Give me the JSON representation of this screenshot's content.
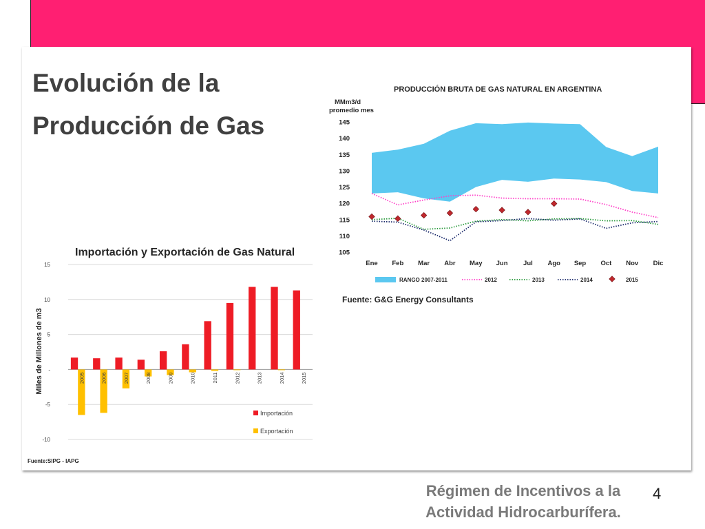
{
  "slide": {
    "title_line1": "Evolución de la",
    "title_line2": "Producción de Gas",
    "footer_line1": "Régimen de Incentivos a la",
    "footer_line2": "Actividad Hidrocarburífera.",
    "page_number": "4",
    "colors": {
      "band": "#ff1f72",
      "title": "#404040",
      "footer": "#7a7a7a"
    }
  },
  "chart_data": [
    {
      "type": "bar",
      "title": "Importación y Exportación de Gas Natural",
      "ylabel": "Miles de Millones de m3",
      "xlabel": "",
      "ylim": [
        -10,
        15
      ],
      "yticks": [
        "15",
        "10",
        "5",
        "-",
        "-5",
        "-10"
      ],
      "categories": [
        "2005",
        "2006",
        "2007",
        "2008",
        "2009",
        "2010",
        "2011",
        "2012",
        "2013",
        "2014",
        "2015"
      ],
      "series": [
        {
          "name": "Importación",
          "color": "#ee1c25",
          "values": [
            1.7,
            1.6,
            1.7,
            1.4,
            2.6,
            3.6,
            6.9,
            9.5,
            11.8,
            11.8,
            11.3
          ]
        },
        {
          "name": "Exportación",
          "color": "#ffc000",
          "values": [
            -6.5,
            -6.2,
            -2.7,
            -1.0,
            -0.8,
            -0.4,
            -0.2,
            -0.1,
            0,
            -0.1,
            0
          ]
        }
      ],
      "source": "Fuente:SIPG - IAPG",
      "grid": true,
      "legend": "bottom-right"
    },
    {
      "type": "line",
      "title": "PRODUCCIÓN BRUTA DE GAS NATURAL EN ARGENTINA",
      "ylabel_line1": "MMm3/d",
      "ylabel_line2": "promedio mes",
      "ylim": [
        105,
        145
      ],
      "yticks": [
        145,
        140,
        135,
        130,
        125,
        120,
        115,
        110,
        105
      ],
      "categories": [
        "Ene",
        "Feb",
        "Mar",
        "Abr",
        "May",
        "Jun",
        "Jul",
        "Ago",
        "Sep",
        "Oct",
        "Nov",
        "Dic"
      ],
      "range": {
        "name": "RANGO 2007-2011",
        "color": "#5bc8f0",
        "upper": [
          135.5,
          136.5,
          138.3,
          142.3,
          144.6,
          144.3,
          144.8,
          144.5,
          144.3,
          137.3,
          134.5,
          137.4
        ],
        "lower": [
          123.0,
          123.4,
          121.5,
          120.5,
          125.0,
          127.2,
          126.6,
          127.6,
          127.3,
          126.5,
          123.8,
          123.0
        ]
      },
      "series": [
        {
          "name": "2012",
          "color": "#ff3fc8",
          "style": "dotted",
          "values": [
            123.0,
            119.5,
            121.0,
            122.3,
            122.5,
            121.6,
            121.4,
            121.4,
            121.3,
            119.6,
            117.3,
            115.6
          ]
        },
        {
          "name": "2013",
          "color": "#2a9a3c",
          "style": "dotted",
          "values": [
            115.0,
            115.4,
            112.0,
            112.4,
            114.5,
            115.0,
            114.6,
            115.2,
            115.3,
            114.6,
            114.7,
            113.5
          ]
        },
        {
          "name": "2014",
          "color": "#1b2a6b",
          "style": "dotted",
          "values": [
            114.5,
            114.2,
            111.8,
            108.5,
            114.3,
            114.7,
            115.3,
            114.8,
            115.2,
            112.3,
            114.0,
            114.4
          ]
        }
      ],
      "markers": {
        "name": "2015",
        "color": "#c0282d",
        "values": [
          115.9,
          115.3,
          116.3,
          117.0,
          118.2,
          117.9,
          117.3,
          119.9
        ]
      },
      "source": "Fuente: G&G Energy Consultants",
      "legend": "bottom"
    }
  ]
}
